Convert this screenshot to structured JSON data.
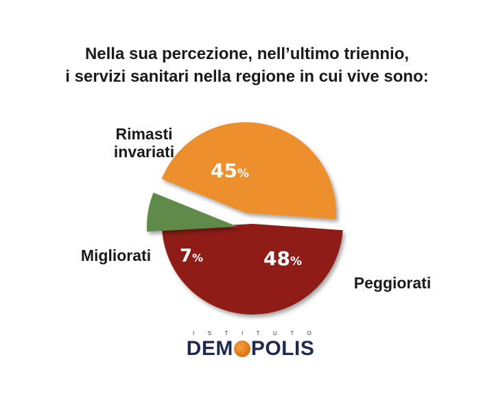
{
  "title_lines": [
    "Nella sua percezione, nell’ultimo triennio,",
    "i servizi sanitari nella regione in cui vive sono:"
  ],
  "chart_data": {
    "type": "pie",
    "title": "Nella sua percezione, nell’ultimo triennio, i servizi sanitari nella regione in cui vive sono:",
    "slices": [
      {
        "label": "Rimasti invariati",
        "label_lines": [
          "Rimasti",
          "invariati"
        ],
        "value": 45,
        "display": "45",
        "color": "#ee8f2e"
      },
      {
        "label": "Peggiorati",
        "label_lines": [
          "Peggiorati"
        ],
        "value": 48,
        "display": "48",
        "color": "#8f1a13"
      },
      {
        "label": "Migliorati",
        "label_lines": [
          "Migliorati"
        ],
        "value": 7,
        "display": "7",
        "color": "#5e8a4a"
      }
    ],
    "percent_sign": "%"
  },
  "logo": {
    "top_text": "ISTITUTO",
    "main_before": "DEM",
    "main_o": "O",
    "main_after": "POLIS"
  }
}
